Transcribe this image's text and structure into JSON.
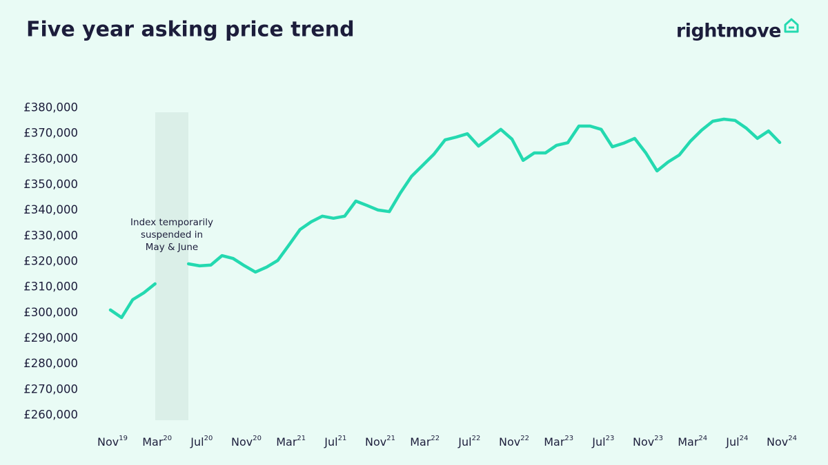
{
  "chart_data": {
    "type": "line",
    "title": "Five year asking price trend",
    "logo": "rightmove",
    "annotation": [
      "Index temporarily",
      "suspended in",
      "May & June"
    ],
    "categories": [
      "Nov19",
      null,
      null,
      null,
      "Mar20",
      null,
      null,
      null,
      "Jul20",
      null,
      null,
      null,
      "Nov20",
      null,
      null,
      null,
      "Mar21",
      null,
      null,
      null,
      "Jul21",
      null,
      null,
      null,
      "Nov21",
      null,
      null,
      null,
      "Mar22",
      null,
      null,
      null,
      "Jul22",
      null,
      null,
      null,
      "Nov22",
      null,
      null,
      null,
      "Mar23",
      null,
      null,
      null,
      "Jul23",
      null,
      null,
      null,
      "Nov23",
      null,
      null,
      null,
      "Mar24",
      null,
      null,
      null,
      "Jul24",
      null,
      null,
      null,
      "Nov24"
    ],
    "series": [
      {
        "name": "Asking price",
        "color": "#24d9b0",
        "values": [
          301200,
          298200,
          305200,
          307900,
          311400,
          null,
          null,
          319200,
          318400,
          318700,
          322400,
          321300,
          318500,
          316000,
          317900,
          320500,
          326500,
          332600,
          335600,
          337800,
          337000,
          337800,
          343700,
          342000,
          340200,
          339600,
          346900,
          353400,
          357700,
          362000,
          367600,
          368700,
          370000,
          365200,
          368400,
          371700,
          367900,
          359600,
          362500,
          362500,
          365500,
          366500,
          373000,
          373000,
          371700,
          364900,
          366300,
          368200,
          362500,
          355500,
          359000,
          361700,
          367100,
          371400,
          374900,
          375700,
          375200,
          372200,
          368200,
          371100,
          366600
        ]
      }
    ],
    "ylim": [
      260000,
      380000
    ],
    "yticks": [
      {
        "value": 260000,
        "label": "£260,000"
      },
      {
        "value": 270000,
        "label": "£270,000"
      },
      {
        "value": 280000,
        "label": "£280,000"
      },
      {
        "value": 290000,
        "label": "£290,000"
      },
      {
        "value": 300000,
        "label": "£300,000"
      },
      {
        "value": 310000,
        "label": "£310,000"
      },
      {
        "value": 320000,
        "label": "£320,000"
      },
      {
        "value": 330000,
        "label": "£330,000"
      },
      {
        "value": 340000,
        "label": "£340,000"
      },
      {
        "value": 350000,
        "label": "£350,000"
      },
      {
        "value": 360000,
        "label": "£360,000"
      },
      {
        "value": 370000,
        "label": "£370,000"
      },
      {
        "value": 380000,
        "label": "£380,000"
      }
    ],
    "grid": false
  }
}
